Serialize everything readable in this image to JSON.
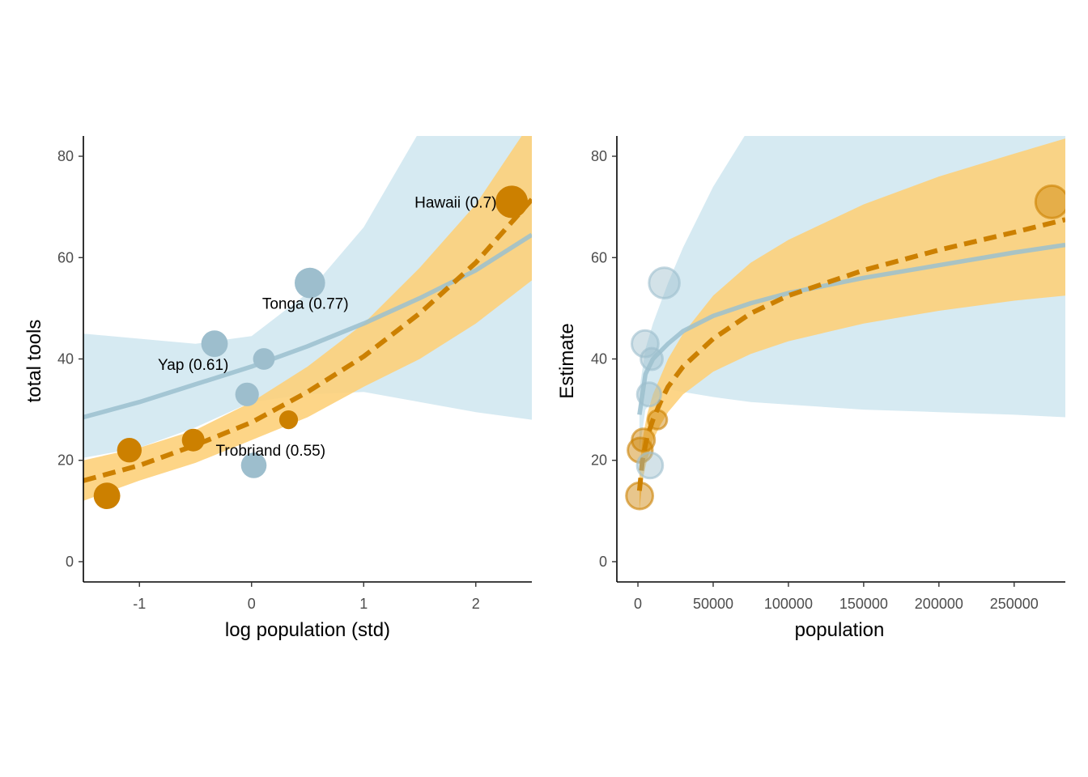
{
  "colors": {
    "blue_band": "#d6eaf2",
    "blue_line": "#9bbfcf",
    "blue_point": "#9dbecd",
    "orange_band": "#fdd07a",
    "orange_band_inner": "#e9c06b",
    "orange_line": "#cc8000",
    "orange_point": "#cc8000"
  },
  "chart_data": [
    {
      "type": "scatter",
      "xlabel": "log population (std)",
      "ylabel": "total tools",
      "xlim": [
        -1.5,
        2.5
      ],
      "ylim": [
        -4,
        84
      ],
      "x_ticks": [
        -1,
        0,
        1,
        2
      ],
      "y_ticks": [
        0,
        20,
        40,
        60,
        80
      ],
      "x_tick_labels": [
        "-1",
        "0",
        "1",
        "2"
      ],
      "y_tick_labels": [
        "0",
        "20",
        "40",
        "60",
        "80"
      ],
      "grid": false,
      "legend": "none",
      "points": [
        {
          "x": -1.29,
          "y": 13,
          "contact": "low",
          "size": 0.7
        },
        {
          "x": -1.09,
          "y": 22,
          "contact": "low",
          "size": 0.6
        },
        {
          "x": -0.52,
          "y": 24,
          "contact": "low",
          "size": 0.5
        },
        {
          "x": -0.33,
          "y": 43,
          "contact": "high",
          "size": 0.7
        },
        {
          "x": -0.04,
          "y": 33,
          "contact": "high",
          "size": 0.55
        },
        {
          "x": 0.02,
          "y": 19,
          "contact": "high",
          "size": 0.65
        },
        {
          "x": 0.11,
          "y": 40,
          "contact": "high",
          "size": 0.45
        },
        {
          "x": 0.33,
          "y": 28,
          "contact": "low",
          "size": 0.3
        },
        {
          "x": 0.52,
          "y": 55,
          "contact": "high",
          "size": 0.9
        },
        {
          "x": 2.32,
          "y": 71,
          "contact": "low",
          "size": 1.0
        }
      ],
      "annotations": [
        {
          "text": "Hawaii (0.7)",
          "x": 1.82,
          "y": 71
        },
        {
          "text": "Tonga (0.77)",
          "x": 0.48,
          "y": 51
        },
        {
          "text": "Yap (0.61)",
          "x": -0.52,
          "y": 39
        },
        {
          "text": "Trobriand (0.55)",
          "x": 0.17,
          "y": 22
        }
      ],
      "series": [
        {
          "contact": "high",
          "style": "solid",
          "x": [
            -1.5,
            -1.0,
            -0.5,
            0.0,
            0.5,
            1.0,
            1.5,
            2.0,
            2.5
          ],
          "mean": [
            28.5,
            31.5,
            35.0,
            38.5,
            42.5,
            47.0,
            52.0,
            57.5,
            64.5
          ],
          "lower": [
            20.5,
            22.5,
            26.5,
            31.5,
            33.0,
            33.5,
            31.5,
            29.5,
            28.0
          ],
          "upper": [
            45.0,
            44.0,
            43.0,
            44.5,
            53.0,
            66.0,
            85.0,
            100.0,
            120.0
          ]
        },
        {
          "contact": "low",
          "style": "dashed",
          "x": [
            -1.5,
            -1.0,
            -0.5,
            0.0,
            0.5,
            1.0,
            1.5,
            2.0,
            2.5
          ],
          "mean": [
            16.0,
            19.0,
            23.0,
            27.5,
            33.5,
            40.5,
            49.0,
            59.0,
            71.5
          ],
          "lower": [
            12.0,
            16.0,
            19.5,
            24.0,
            28.5,
            34.5,
            40.0,
            47.0,
            55.5
          ],
          "upper": [
            20.0,
            22.5,
            26.0,
            31.5,
            38.5,
            47.0,
            58.0,
            70.5,
            87.0
          ]
        }
      ]
    },
    {
      "type": "scatter",
      "xlabel": "population",
      "ylabel": "Estimate",
      "xlim": [
        -14000,
        284000
      ],
      "ylim": [
        -4,
        84
      ],
      "x_ticks": [
        0,
        50000,
        100000,
        150000,
        200000,
        250000
      ],
      "y_ticks": [
        0,
        20,
        40,
        60,
        80
      ],
      "x_tick_labels": [
        "0",
        "50000",
        "100000",
        "150000",
        "200000",
        "250000"
      ],
      "y_tick_labels": [
        "0",
        "20",
        "40",
        "60",
        "80"
      ],
      "grid": false,
      "legend": "none",
      "points": [
        {
          "x": 1100,
          "y": 13,
          "contact": "low",
          "size": 0.7
        },
        {
          "x": 1500,
          "y": 22,
          "contact": "low",
          "size": 0.6
        },
        {
          "x": 3600,
          "y": 24,
          "contact": "low",
          "size": 0.5
        },
        {
          "x": 4791,
          "y": 43,
          "contact": "high",
          "size": 0.7
        },
        {
          "x": 7400,
          "y": 33,
          "contact": "high",
          "size": 0.55
        },
        {
          "x": 8000,
          "y": 19,
          "contact": "high",
          "size": 0.65
        },
        {
          "x": 9200,
          "y": 40,
          "contact": "high",
          "size": 0.45
        },
        {
          "x": 13000,
          "y": 28,
          "contact": "low",
          "size": 0.3
        },
        {
          "x": 17500,
          "y": 55,
          "contact": "high",
          "size": 0.9
        },
        {
          "x": 275000,
          "y": 71,
          "contact": "low",
          "size": 1.0
        }
      ],
      "series": [
        {
          "contact": "high",
          "style": "solid",
          "x": [
            1000,
            5000,
            10000,
            20000,
            30000,
            50000,
            75000,
            100000,
            150000,
            200000,
            250000,
            284000
          ],
          "mean": [
            29,
            37,
            40,
            43,
            45.5,
            48.5,
            51,
            53,
            56,
            58.5,
            61,
            62.5
          ],
          "lower": [
            22,
            30,
            32,
            34,
            33.5,
            32.5,
            31.5,
            31,
            30,
            29.5,
            29,
            28.5
          ],
          "upper": [
            34,
            42,
            47,
            55,
            62,
            74,
            86,
            96,
            110,
            120,
            128,
            132
          ]
        },
        {
          "contact": "low",
          "style": "dashed",
          "x": [
            1000,
            3000,
            6000,
            10000,
            15000,
            20000,
            30000,
            50000,
            75000,
            100000,
            150000,
            200000,
            250000,
            284000
          ],
          "mean": [
            14,
            20,
            24.5,
            28,
            31.5,
            34.5,
            38.5,
            44,
            49,
            52.5,
            57.5,
            61.5,
            65,
            67.5
          ],
          "lower": [
            10,
            16,
            20,
            24,
            27,
            29.5,
            33,
            37.5,
            41,
            43.5,
            47,
            49.5,
            51.5,
            52.5
          ],
          "upper": [
            18,
            24,
            29,
            33,
            36.5,
            40,
            45,
            52.5,
            59,
            63.5,
            70.5,
            76,
            80.5,
            83.5
          ]
        }
      ]
    }
  ]
}
